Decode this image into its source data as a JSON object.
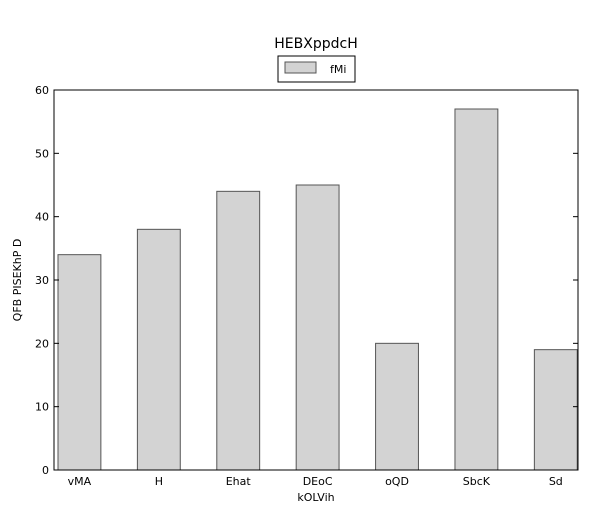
{
  "chart_data": {
    "type": "bar",
    "title": "HEBXppdcH",
    "xlabel": "kOLVih",
    "ylabel": "QFB PISEKhP D",
    "categories": [
      "vMA",
      "H",
      "Ehat",
      "DEoC",
      "oQD",
      "SbcK",
      "Sd"
    ],
    "series": [
      {
        "name": "fMi",
        "values": [
          34,
          38,
          44,
          45,
          20,
          57,
          19
        ]
      }
    ],
    "ylim": [
      0,
      60
    ],
    "yticks": [
      0,
      10,
      20,
      30,
      40,
      50,
      60
    ],
    "grid": false,
    "legend_position": "top-center",
    "colors": {
      "bar_fill": "#d3d3d3",
      "bar_stroke": "#555555",
      "axis": "#000000"
    }
  }
}
